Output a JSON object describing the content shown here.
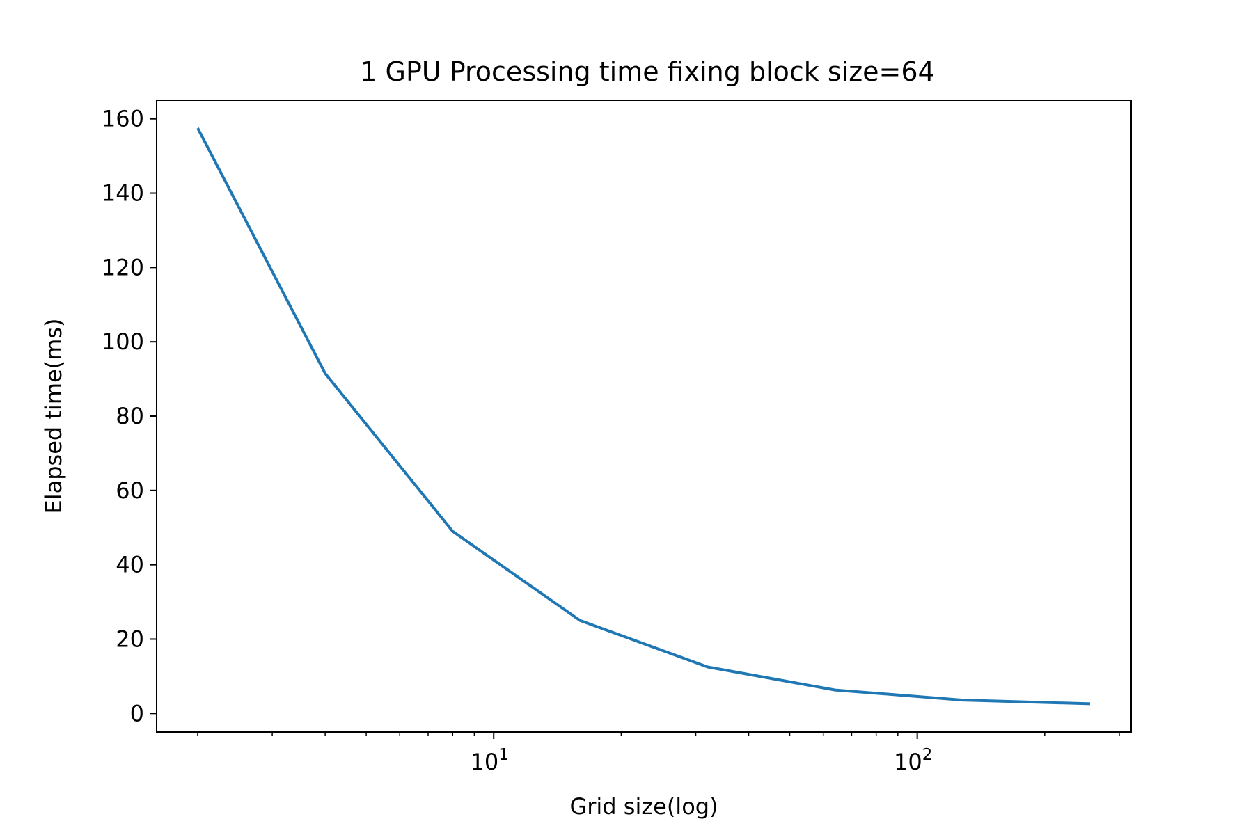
{
  "chart_data": {
    "type": "line",
    "title": "1 GPU Processing time fixing block size=64",
    "xlabel": "Grid size(log)",
    "ylabel": "Elapsed time(ms)",
    "xscale": "log",
    "xlim": [
      1.6,
      320
    ],
    "ylim": [
      -5,
      165
    ],
    "grid": false,
    "series": [
      {
        "x": [
          2,
          4,
          8,
          16,
          32,
          64,
          128,
          256
        ],
        "y": [
          157.5,
          91.5,
          49.0,
          25.0,
          12.5,
          6.3,
          3.6,
          2.6
        ],
        "color": "#1f77b4"
      }
    ],
    "yticks": [
      0,
      20,
      40,
      60,
      80,
      100,
      120,
      140,
      160
    ],
    "xticks": [
      {
        "value": 10,
        "base": "10",
        "exp": "1"
      },
      {
        "value": 100,
        "base": "10",
        "exp": "2"
      }
    ]
  }
}
